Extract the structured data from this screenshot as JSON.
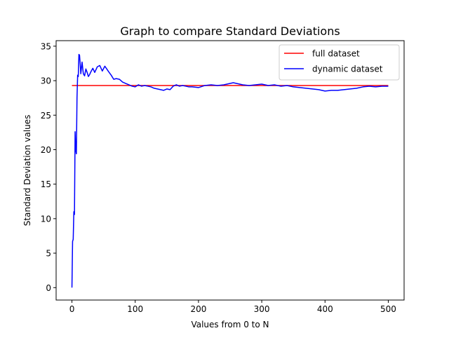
{
  "chart_data": {
    "type": "line",
    "title": "Graph to compare Standard Deviations",
    "xlabel": "Values from 0 to N",
    "ylabel": "Standard Deviation values",
    "xlim": [
      -25,
      525
    ],
    "ylim": [
      -1.8,
      35.8
    ],
    "xticks": [
      0,
      100,
      200,
      300,
      400,
      500
    ],
    "yticks": [
      0,
      5,
      10,
      15,
      20,
      25,
      30,
      35
    ],
    "grid": false,
    "legend_position": "top-right",
    "series": [
      {
        "name": "full dataset",
        "color": "#ff0000",
        "x": [
          0,
          500
        ],
        "y": [
          29.3,
          29.3
        ]
      },
      {
        "name": "dynamic dataset",
        "color": "#0000ff",
        "x": [
          0,
          1,
          2,
          3,
          4,
          5,
          6,
          7,
          8,
          9,
          10,
          11,
          12,
          13,
          14,
          16,
          18,
          20,
          22,
          24,
          26,
          28,
          30,
          33,
          36,
          40,
          44,
          48,
          52,
          55,
          58,
          62,
          66,
          70,
          75,
          80,
          85,
          90,
          95,
          100,
          105,
          110,
          115,
          120,
          125,
          130,
          135,
          140,
          145,
          150,
          155,
          160,
          165,
          170,
          175,
          180,
          185,
          190,
          200,
          210,
          220,
          230,
          240,
          250,
          255,
          260,
          270,
          280,
          290,
          300,
          310,
          320,
          330,
          340,
          350,
          360,
          370,
          380,
          390,
          400,
          410,
          420,
          430,
          440,
          450,
          460,
          470,
          480,
          490,
          500
        ],
        "y": [
          0,
          6.7,
          7.0,
          11.0,
          10.6,
          22.6,
          20.0,
          19.4,
          27.5,
          30.8,
          30.6,
          33.8,
          33.7,
          32.5,
          31.0,
          32.7,
          31.0,
          30.7,
          31.7,
          31.2,
          30.6,
          30.9,
          31.3,
          31.8,
          31.2,
          32.0,
          32.2,
          31.4,
          32.1,
          31.7,
          31.3,
          30.8,
          30.2,
          30.3,
          30.2,
          29.8,
          29.6,
          29.4,
          29.2,
          29.1,
          29.4,
          29.2,
          29.3,
          29.2,
          29.1,
          28.9,
          28.8,
          28.7,
          28.6,
          28.8,
          28.7,
          29.2,
          29.4,
          29.2,
          29.3,
          29.2,
          29.1,
          29.1,
          29.0,
          29.3,
          29.4,
          29.3,
          29.4,
          29.6,
          29.7,
          29.6,
          29.4,
          29.3,
          29.4,
          29.5,
          29.3,
          29.4,
          29.2,
          29.3,
          29.1,
          29.0,
          28.9,
          28.8,
          28.7,
          28.5,
          28.6,
          28.6,
          28.7,
          28.8,
          28.9,
          29.1,
          29.2,
          29.1,
          29.2,
          29.2
        ]
      }
    ]
  }
}
